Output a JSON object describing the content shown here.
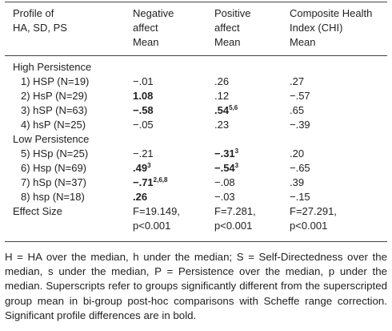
{
  "table": {
    "header": [
      [
        "Profile of",
        "HA, SD, PS"
      ],
      [
        "Negative",
        "affect",
        "Mean"
      ],
      [
        "Positive",
        "affect",
        "Mean"
      ],
      [
        "Composite Health",
        "Index (CHI)",
        "Mean"
      ]
    ],
    "sections": [
      {
        "title": "High Persistence",
        "rows": [
          {
            "label": "1) HSP (N=19)",
            "cells": [
              {
                "text": "−.01"
              },
              {
                "text": ".26"
              },
              {
                "text": ".27"
              }
            ]
          },
          {
            "label": "2) HsP (N=29)",
            "cells": [
              {
                "text": "1.08",
                "bold": true
              },
              {
                "text": ".12"
              },
              {
                "text": "−.57"
              }
            ]
          },
          {
            "label": "3) hSP (N=63)",
            "cells": [
              {
                "text": "−.58",
                "bold": true
              },
              {
                "text": ".54",
                "sup": "5,6",
                "bold": true
              },
              {
                "text": ".65"
              }
            ]
          },
          {
            "label": "4) hsP (N=25)",
            "cells": [
              {
                "text": "−.05"
              },
              {
                "text": ".23"
              },
              {
                "text": "−.39"
              }
            ]
          }
        ]
      },
      {
        "title": "Low Persistence",
        "rows": [
          {
            "label": "5) HSp (N=25)",
            "cells": [
              {
                "text": "−.21"
              },
              {
                "text": "−.31",
                "sup": "3",
                "bold": true
              },
              {
                "text": ".20"
              }
            ]
          },
          {
            "label": "6) Hsp (N=69)",
            "cells": [
              {
                "text": ".49",
                "sup": "3",
                "bold": true
              },
              {
                "text": "−.54",
                "sup": "3",
                "bold": true
              },
              {
                "text": "−.65"
              }
            ]
          },
          {
            "label": "7) hSp (N=37)",
            "cells": [
              {
                "text": "−.71",
                "sup": "2,6,8",
                "bold": true
              },
              {
                "text": "−.08"
              },
              {
                "text": ".39"
              }
            ]
          },
          {
            "label": "8) hsp (N=18)",
            "cells": [
              {
                "text": ".26",
                "bold": true
              },
              {
                "text": "−.03"
              },
              {
                "text": "−.15"
              }
            ]
          }
        ]
      }
    ],
    "effect_size": {
      "label": "Effect Size",
      "cells": [
        [
          "F=19.149,",
          "p<0.001"
        ],
        [
          "F=7.281,",
          "p<0.001"
        ],
        [
          "F=27.291,",
          "p<0.001"
        ]
      ]
    },
    "footnote": "H = HA over the median, h under the median; S = Self-Directedness over the median, s under the median, P = Persistence over the median, p under the median. Superscripts refer to groups significantly different from the superscripted group mean in bi-group post-hoc comparisons with Scheffe range correction. Significant profile differences are in bold."
  }
}
